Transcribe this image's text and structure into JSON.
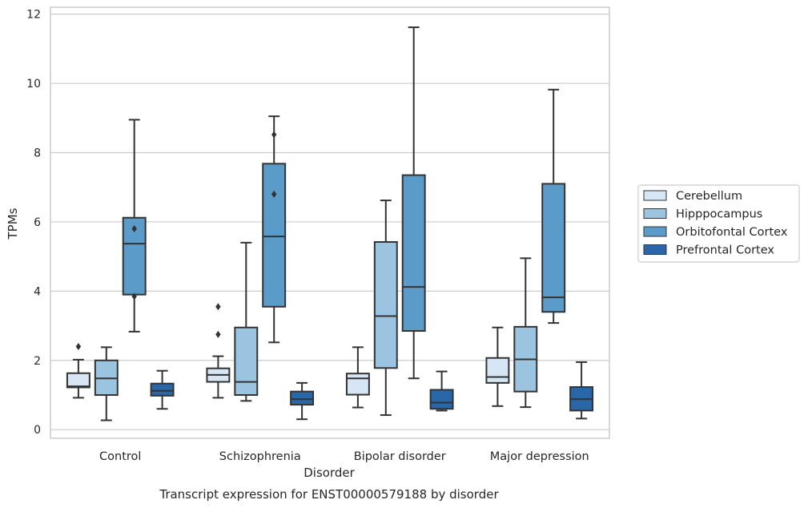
{
  "chart_data": {
    "type": "box",
    "xlabel": "Disorder",
    "ylabel": "TPMs",
    "caption": "Transcript expression for ENST00000579188 by disorder",
    "ylim": [
      -0.25,
      12.2
    ],
    "yticks": [
      0,
      2,
      4,
      6,
      8,
      10,
      12
    ],
    "grid": "horizontal",
    "legend_position": "right",
    "categories": [
      "Control",
      "Schizophrenia",
      "Bipolar disorder",
      "Major depression"
    ],
    "series": [
      {
        "name": "Cerebellum",
        "color": "#d6e6f4",
        "boxes": [
          {
            "whislo": 0.92,
            "q1": 1.22,
            "med": 1.25,
            "q3": 1.63,
            "whishi": 2.02,
            "fliers": [
              2.4
            ]
          },
          {
            "whislo": 0.92,
            "q1": 1.38,
            "med": 1.58,
            "q3": 1.77,
            "whishi": 2.12,
            "fliers": [
              2.75,
              3.55
            ]
          },
          {
            "whislo": 0.64,
            "q1": 1.01,
            "med": 1.48,
            "q3": 1.62,
            "whishi": 2.38,
            "fliers": []
          },
          {
            "whislo": 0.68,
            "q1": 1.35,
            "med": 1.52,
            "q3": 2.07,
            "whishi": 2.95,
            "fliers": []
          }
        ]
      },
      {
        "name": "Hipppocampus",
        "color": "#9ac4df",
        "boxes": [
          {
            "whislo": 0.27,
            "q1": 1.0,
            "med": 1.48,
            "q3": 2.0,
            "whishi": 2.38,
            "fliers": []
          },
          {
            "whislo": 0.83,
            "q1": 1.0,
            "med": 1.38,
            "q3": 2.95,
            "whishi": 5.4,
            "fliers": []
          },
          {
            "whislo": 0.42,
            "q1": 1.78,
            "med": 3.28,
            "q3": 5.42,
            "whishi": 6.62,
            "fliers": []
          },
          {
            "whislo": 0.65,
            "q1": 1.1,
            "med": 2.03,
            "q3": 2.97,
            "whishi": 4.95,
            "fliers": []
          }
        ]
      },
      {
        "name": "Orbitofontal Cortex",
        "color": "#5b9bc9",
        "boxes": [
          {
            "whislo": 2.83,
            "q1": 3.9,
            "med": 5.37,
            "q3": 6.12,
            "whishi": 8.95,
            "fliers": [
              3.85,
              5.8
            ]
          },
          {
            "whislo": 2.52,
            "q1": 3.55,
            "med": 5.58,
            "q3": 7.68,
            "whishi": 9.05,
            "fliers": [
              6.8,
              8.52
            ]
          },
          {
            "whislo": 1.48,
            "q1": 2.85,
            "med": 4.12,
            "q3": 7.35,
            "whishi": 11.62,
            "fliers": []
          },
          {
            "whislo": 3.08,
            "q1": 3.4,
            "med": 3.82,
            "q3": 7.1,
            "whishi": 9.82,
            "fliers": []
          }
        ]
      },
      {
        "name": "Prefrontal Cortex",
        "color": "#2a67a8",
        "boxes": [
          {
            "whislo": 0.6,
            "q1": 0.98,
            "med": 1.12,
            "q3": 1.33,
            "whishi": 1.7,
            "fliers": []
          },
          {
            "whislo": 0.3,
            "q1": 0.72,
            "med": 0.88,
            "q3": 1.1,
            "whishi": 1.35,
            "fliers": []
          },
          {
            "whislo": 0.55,
            "q1": 0.6,
            "med": 0.78,
            "q3": 1.15,
            "whishi": 1.68,
            "fliers": []
          },
          {
            "whislo": 0.32,
            "q1": 0.55,
            "med": 0.88,
            "q3": 1.23,
            "whishi": 1.95,
            "fliers": []
          }
        ]
      }
    ]
  }
}
